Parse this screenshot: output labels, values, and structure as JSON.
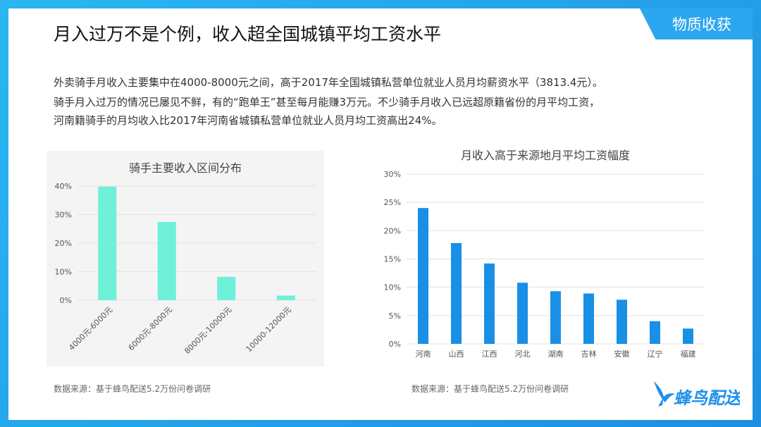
{
  "header": {
    "section_tag": "物质收获",
    "title": "月入过万不是个例，收入超全国城镇平均工资水平"
  },
  "intro": [
    "外卖骑手月收入主要集中在4000-8000元之间，高于2017年全国城镇私营单位就业人员月均薪资水平（3813.4元）。",
    "骑手月入过万的情况已屡见不鲜，有的“跑单王”甚至每月能赚3万元。不少骑手月收入已远超原籍省份的月平均工资，",
    "河南籍骑手的月均收入比2017年河南省城镇私营单位就业人员月均工资高出24%。"
  ],
  "chart_data": [
    {
      "type": "bar",
      "title": "骑手主要收入区间分布",
      "categories": [
        "4000元-6000元",
        "6000元-8000元",
        "8000元-10000元",
        "10000-12000元"
      ],
      "values": [
        39.8,
        27.4,
        8.2,
        1.6
      ],
      "ylim": [
        0,
        40
      ],
      "yticks": [
        "0%",
        "10%",
        "20%",
        "30%",
        "40%"
      ],
      "color": "#6ff0d8",
      "grid": true
    },
    {
      "type": "bar",
      "title": "月收入高于来源地月平均工资幅度",
      "categories": [
        "河南",
        "山西",
        "江西",
        "河北",
        "湖南",
        "吉林",
        "安徽",
        "辽宁",
        "福建"
      ],
      "values": [
        24.0,
        17.8,
        14.2,
        10.8,
        9.3,
        8.9,
        7.8,
        4.0,
        2.7
      ],
      "ylim": [
        0,
        30
      ],
      "yticks": [
        "0%",
        "5%",
        "10%",
        "15%",
        "20%",
        "25%",
        "30%"
      ],
      "color": "#1a8fe6",
      "grid": true
    }
  ],
  "sources": {
    "left": "数据来源：基于蜂鸟配送5.2万份问卷调研",
    "right": "数据来源：基于蜂鸟配送5.2万份问卷调研"
  },
  "logo": {
    "text": "蜂鸟配送",
    "color": "#1e90ea"
  }
}
